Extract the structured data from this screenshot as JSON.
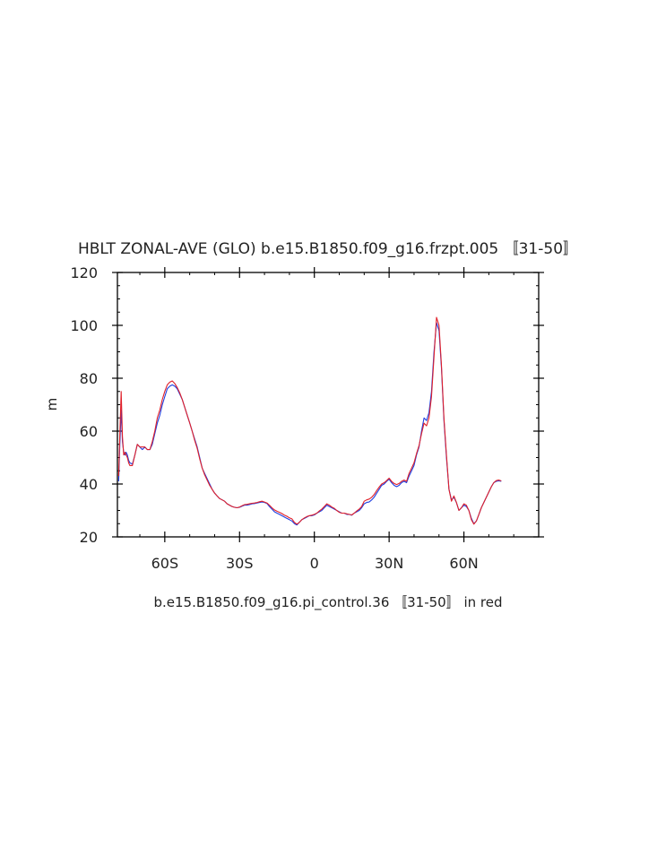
{
  "chart_data": {
    "type": "line",
    "title": "HBLT ZONAL-AVE (GLO) b.e15.B1850.f09_g16.frzpt.005 〚31-50〛",
    "xlabel": "b.e15.B1850.f09_g16.pi_control.36 〚31-50〛 in red",
    "ylabel": "m",
    "xlim": [
      -79,
      90
    ],
    "ylim": [
      20,
      120
    ],
    "yticks": [
      20,
      40,
      60,
      80,
      100,
      120
    ],
    "xticks": [
      {
        "value": -60,
        "label": "60S"
      },
      {
        "value": -30,
        "label": "30S"
      },
      {
        "value": 0,
        "label": "0"
      },
      {
        "value": 30,
        "label": "30N"
      },
      {
        "value": 60,
        "label": "60N"
      }
    ],
    "grid": false,
    "colors": {
      "series1": "#1f3fe0",
      "series2": "#e0202a"
    },
    "series": [
      {
        "color": "#1f3fe0",
        "points": [
          [
            -78.5,
            41
          ],
          [
            -78,
            56
          ],
          [
            -77.5,
            68
          ],
          [
            -77,
            56
          ],
          [
            -76.5,
            52
          ],
          [
            -76,
            51
          ],
          [
            -75.5,
            52
          ],
          [
            -75,
            51
          ],
          [
            -74.5,
            49
          ],
          [
            -74,
            48
          ],
          [
            -73,
            47.5
          ],
          [
            -72,
            51
          ],
          [
            -71,
            55
          ],
          [
            -70,
            54
          ],
          [
            -69,
            53
          ],
          [
            -68,
            54
          ],
          [
            -67,
            53
          ],
          [
            -66,
            53
          ],
          [
            -65,
            55
          ],
          [
            -64,
            59
          ],
          [
            -63,
            63
          ],
          [
            -62,
            66
          ],
          [
            -61,
            70
          ],
          [
            -60,
            73
          ],
          [
            -59,
            76
          ],
          [
            -58,
            77
          ],
          [
            -57,
            77.5
          ],
          [
            -56,
            77
          ],
          [
            -55,
            76
          ],
          [
            -54,
            74
          ],
          [
            -53,
            72
          ],
          [
            -52,
            69
          ],
          [
            -51,
            66
          ],
          [
            -50,
            63
          ],
          [
            -49,
            60
          ],
          [
            -48,
            57
          ],
          [
            -47,
            54
          ],
          [
            -46,
            50
          ],
          [
            -45,
            46
          ],
          [
            -44,
            44
          ],
          [
            -43,
            42
          ],
          [
            -42,
            40
          ],
          [
            -41,
            38
          ],
          [
            -40,
            36.5
          ],
          [
            -39,
            35.5
          ],
          [
            -38,
            34.5
          ],
          [
            -37,
            34
          ],
          [
            -36,
            33.5
          ],
          [
            -35,
            32.5
          ],
          [
            -34,
            32
          ],
          [
            -33,
            31.5
          ],
          [
            -32,
            31.2
          ],
          [
            -31,
            31
          ],
          [
            -30,
            31.2
          ],
          [
            -29,
            31.6
          ],
          [
            -28,
            32
          ],
          [
            -27,
            32
          ],
          [
            -26,
            32.2
          ],
          [
            -25,
            32.5
          ],
          [
            -24,
            32.6
          ],
          [
            -23,
            32.8
          ],
          [
            -22,
            33
          ],
          [
            -21,
            33.2
          ],
          [
            -20,
            33
          ],
          [
            -19,
            32.6
          ],
          [
            -18,
            31.5
          ],
          [
            -17,
            30.5
          ],
          [
            -16,
            29.5
          ],
          [
            -15,
            29
          ],
          [
            -14,
            28.5
          ],
          [
            -13,
            28
          ],
          [
            -12,
            27.5
          ],
          [
            -11,
            27
          ],
          [
            -10,
            26.5
          ],
          [
            -9,
            26
          ],
          [
            -8,
            25
          ],
          [
            -7,
            24.5
          ],
          [
            -6,
            25.5
          ],
          [
            -5,
            26.5
          ],
          [
            -4,
            27
          ],
          [
            -3,
            27.5
          ],
          [
            -2,
            28
          ],
          [
            -1,
            28
          ],
          [
            0,
            28.3
          ],
          [
            1,
            29
          ],
          [
            2,
            29.5
          ],
          [
            3,
            30
          ],
          [
            4,
            31
          ],
          [
            5,
            32
          ],
          [
            6,
            31.5
          ],
          [
            7,
            31
          ],
          [
            8,
            30.5
          ],
          [
            9,
            30
          ],
          [
            10,
            29.5
          ],
          [
            11,
            29
          ],
          [
            12,
            29
          ],
          [
            13,
            28.5
          ],
          [
            14,
            28.5
          ],
          [
            15,
            28.2
          ],
          [
            16,
            29
          ],
          [
            17,
            29.5
          ],
          [
            18,
            30
          ],
          [
            19,
            31
          ],
          [
            20,
            32.5
          ],
          [
            21,
            33
          ],
          [
            22,
            33.2
          ],
          [
            23,
            34
          ],
          [
            24,
            35
          ],
          [
            25,
            36.5
          ],
          [
            26,
            38
          ],
          [
            27,
            39.5
          ],
          [
            28,
            40
          ],
          [
            29,
            41
          ],
          [
            30,
            41.8
          ],
          [
            31,
            40.5
          ],
          [
            32,
            39.5
          ],
          [
            33,
            39
          ],
          [
            34,
            39.5
          ],
          [
            35,
            40.5
          ],
          [
            36,
            41
          ],
          [
            37,
            40.5
          ],
          [
            38,
            43
          ],
          [
            39,
            45
          ],
          [
            40,
            47
          ],
          [
            41,
            51
          ],
          [
            42,
            54
          ],
          [
            43,
            60
          ],
          [
            44,
            65
          ],
          [
            45,
            64
          ],
          [
            46,
            67
          ],
          [
            47,
            75
          ],
          [
            48,
            90
          ],
          [
            49,
            101
          ],
          [
            50,
            98
          ],
          [
            51,
            84
          ],
          [
            52,
            64
          ],
          [
            53,
            50
          ],
          [
            54,
            38
          ],
          [
            55,
            34
          ],
          [
            56,
            35
          ],
          [
            57,
            33
          ],
          [
            58,
            30
          ],
          [
            59,
            31
          ],
          [
            60,
            32
          ],
          [
            61,
            31.5
          ],
          [
            62,
            30
          ],
          [
            63,
            27
          ],
          [
            64,
            25
          ],
          [
            65,
            26
          ],
          [
            66,
            28.5
          ],
          [
            67,
            31
          ],
          [
            68,
            33
          ],
          [
            69,
            35
          ],
          [
            70,
            37
          ],
          [
            71,
            39
          ],
          [
            72,
            40.5
          ],
          [
            73,
            41
          ],
          [
            74,
            41.2
          ],
          [
            75,
            41
          ]
        ]
      },
      {
        "color": "#e0202a",
        "points": [
          [
            -78.5,
            43
          ],
          [
            -78,
            60
          ],
          [
            -77.5,
            75
          ],
          [
            -77,
            58
          ],
          [
            -76.5,
            51
          ],
          [
            -76,
            52
          ],
          [
            -75.5,
            51
          ],
          [
            -75,
            50
          ],
          [
            -74.5,
            48
          ],
          [
            -74,
            47
          ],
          [
            -73,
            47
          ],
          [
            -72,
            51
          ],
          [
            -71,
            55
          ],
          [
            -70,
            54
          ],
          [
            -69,
            54
          ],
          [
            -68,
            54
          ],
          [
            -67,
            53
          ],
          [
            -66,
            53
          ],
          [
            -65,
            56
          ],
          [
            -64,
            60
          ],
          [
            -63,
            65
          ],
          [
            -62,
            68
          ],
          [
            -61,
            72
          ],
          [
            -60,
            75
          ],
          [
            -59,
            77.5
          ],
          [
            -58,
            78.5
          ],
          [
            -57,
            79
          ],
          [
            -56,
            78
          ],
          [
            -55,
            76.5
          ],
          [
            -54,
            74.5
          ],
          [
            -53,
            72
          ],
          [
            -52,
            69
          ],
          [
            -51,
            66
          ],
          [
            -50,
            63
          ],
          [
            -49,
            60
          ],
          [
            -48,
            56.5
          ],
          [
            -47,
            53.5
          ],
          [
            -46,
            49.5
          ],
          [
            -45,
            46
          ],
          [
            -44,
            43.5
          ],
          [
            -43,
            41.5
          ],
          [
            -42,
            39.5
          ],
          [
            -41,
            38
          ],
          [
            -40,
            36.5
          ],
          [
            -39,
            35.5
          ],
          [
            -38,
            34.5
          ],
          [
            -37,
            34
          ],
          [
            -36,
            33.5
          ],
          [
            -35,
            32.5
          ],
          [
            -34,
            32
          ],
          [
            -33,
            31.5
          ],
          [
            -32,
            31.2
          ],
          [
            -31,
            31
          ],
          [
            -30,
            31.3
          ],
          [
            -29,
            31.8
          ],
          [
            -28,
            32.2
          ],
          [
            -27,
            32.3
          ],
          [
            -26,
            32.5
          ],
          [
            -25,
            32.7
          ],
          [
            -24,
            32.8
          ],
          [
            -23,
            33
          ],
          [
            -22,
            33.3
          ],
          [
            -21,
            33.5
          ],
          [
            -20,
            33.2
          ],
          [
            -19,
            32.8
          ],
          [
            -18,
            32
          ],
          [
            -17,
            31
          ],
          [
            -16,
            30.2
          ],
          [
            -15,
            29.7
          ],
          [
            -14,
            29.3
          ],
          [
            -13,
            28.8
          ],
          [
            -12,
            28.2
          ],
          [
            -11,
            27.8
          ],
          [
            -10,
            27.2
          ],
          [
            -9,
            26.8
          ],
          [
            -8,
            25.5
          ],
          [
            -7,
            24.8
          ],
          [
            -6,
            25.5
          ],
          [
            -5,
            26.5
          ],
          [
            -4,
            27.2
          ],
          [
            -3,
            27.7
          ],
          [
            -2,
            28
          ],
          [
            -1,
            28.2
          ],
          [
            0,
            28.5
          ],
          [
            1,
            29
          ],
          [
            2,
            29.8
          ],
          [
            3,
            30.5
          ],
          [
            4,
            31.5
          ],
          [
            5,
            32.5
          ],
          [
            6,
            32
          ],
          [
            7,
            31.3
          ],
          [
            8,
            30.8
          ],
          [
            9,
            30
          ],
          [
            10,
            29.3
          ],
          [
            11,
            29
          ],
          [
            12,
            29
          ],
          [
            13,
            28.7
          ],
          [
            14,
            28.5
          ],
          [
            15,
            28.3
          ],
          [
            16,
            29
          ],
          [
            17,
            29.8
          ],
          [
            18,
            30.5
          ],
          [
            19,
            31.5
          ],
          [
            20,
            33.5
          ],
          [
            21,
            34
          ],
          [
            22,
            34.3
          ],
          [
            23,
            35
          ],
          [
            24,
            36
          ],
          [
            25,
            37.5
          ],
          [
            26,
            38.8
          ],
          [
            27,
            40
          ],
          [
            28,
            40.5
          ],
          [
            29,
            41.3
          ],
          [
            30,
            42.2
          ],
          [
            31,
            41
          ],
          [
            32,
            40.2
          ],
          [
            33,
            39.8
          ],
          [
            34,
            40.2
          ],
          [
            35,
            41
          ],
          [
            36,
            41.5
          ],
          [
            37,
            41
          ],
          [
            38,
            44
          ],
          [
            39,
            46
          ],
          [
            40,
            48
          ],
          [
            41,
            51.5
          ],
          [
            42,
            54.5
          ],
          [
            43,
            59
          ],
          [
            44,
            63
          ],
          [
            45,
            62
          ],
          [
            46,
            65
          ],
          [
            47,
            73
          ],
          [
            48,
            88
          ],
          [
            49,
            103
          ],
          [
            50,
            100
          ],
          [
            51,
            85
          ],
          [
            52,
            65
          ],
          [
            53,
            51
          ],
          [
            54,
            38
          ],
          [
            55,
            33.5
          ],
          [
            56,
            35.5
          ],
          [
            57,
            33
          ],
          [
            58,
            30
          ],
          [
            59,
            31
          ],
          [
            60,
            32.5
          ],
          [
            61,
            32
          ],
          [
            62,
            30
          ],
          [
            63,
            26.5
          ],
          [
            64,
            24.8
          ],
          [
            65,
            26
          ],
          [
            66,
            28.5
          ],
          [
            67,
            31
          ],
          [
            68,
            33
          ],
          [
            69,
            35
          ],
          [
            70,
            37
          ],
          [
            71,
            39
          ],
          [
            72,
            40.5
          ],
          [
            73,
            41.3
          ],
          [
            74,
            41.5
          ],
          [
            75,
            41.2
          ]
        ]
      }
    ]
  }
}
